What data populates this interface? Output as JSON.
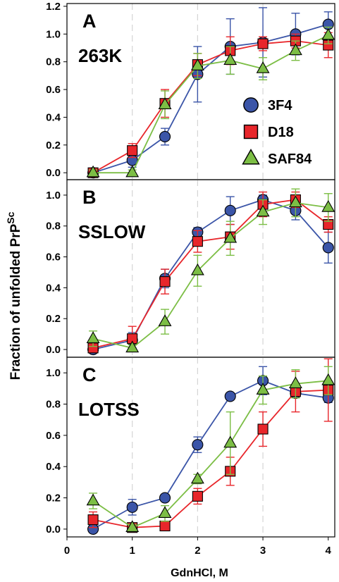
{
  "figure": {
    "ylabel_main": "Fraction of unfolded PrP",
    "ylabel_sup": "Sc",
    "xlabel": "GdnHCl, M",
    "x_ticks": [
      "0",
      "1",
      "2",
      "3",
      "4"
    ],
    "legend": [
      {
        "label": "3F4",
        "marker": "circle",
        "color": "#3B55A8"
      },
      {
        "label": "D18",
        "marker": "square",
        "color": "#E8262B"
      },
      {
        "label": "SAF84",
        "marker": "triangle",
        "color": "#7CBE45"
      }
    ]
  },
  "chart_data": [
    {
      "type": "line",
      "letter": "A",
      "title": "263K",
      "xlabel": "GdnHCl, M",
      "ylabel": "Fraction of unfolded PrP^Sc",
      "xlim": [
        0,
        4.1
      ],
      "ylim": [
        -0.05,
        1.22
      ],
      "y_ticks": [
        "0.0",
        "0.2",
        "0.4",
        "0.6",
        "0.8",
        "1.0",
        "1.2"
      ],
      "x_gridlines": [
        1,
        2,
        3
      ],
      "x": [
        0.4,
        1.0,
        1.5,
        2.0,
        2.5,
        3.0,
        3.5,
        4.0
      ],
      "series": [
        {
          "name": "3F4",
          "color": "#3B55A8",
          "marker": "circle",
          "values": [
            0.0,
            0.09,
            0.26,
            0.71,
            0.91,
            0.94,
            1.0,
            1.07
          ],
          "errors": [
            0.0,
            0.05,
            0.06,
            0.2,
            0.2,
            0.25,
            0.15,
            0.09
          ]
        },
        {
          "name": "D18",
          "color": "#E8262B",
          "marker": "square",
          "values": [
            0.0,
            0.16,
            0.5,
            0.78,
            0.88,
            0.93,
            0.95,
            0.92
          ],
          "errors": [
            0.02,
            0.05,
            0.1,
            0.08,
            0.1,
            0.05,
            0.05,
            0.09
          ]
        },
        {
          "name": "SAF84",
          "color": "#7CBE45",
          "marker": "triangle",
          "values": [
            0.0,
            0.0,
            0.49,
            0.77,
            0.81,
            0.75,
            0.88,
            0.99
          ],
          "errors": [
            0.02,
            0.02,
            0.1,
            0.09,
            0.1,
            0.08,
            0.07,
            0.06
          ]
        }
      ]
    },
    {
      "type": "line",
      "letter": "B",
      "title": "SSLOW",
      "xlabel": "GdnHCl, M",
      "ylabel": "Fraction of unfolded PrP^Sc",
      "xlim": [
        0,
        4.1
      ],
      "ylim": [
        -0.05,
        1.1
      ],
      "y_ticks": [
        "0.0",
        "0.2",
        "0.4",
        "0.6",
        "0.8",
        "1.0"
      ],
      "x_gridlines": [
        1,
        2,
        3
      ],
      "x": [
        0.4,
        1.0,
        1.5,
        2.0,
        2.5,
        3.0,
        3.5,
        4.0
      ],
      "series": [
        {
          "name": "3F4",
          "color": "#3B55A8",
          "marker": "circle",
          "values": [
            0.0,
            0.06,
            0.46,
            0.76,
            0.9,
            0.97,
            0.9,
            0.66
          ],
          "errors": [
            0.01,
            0.05,
            0.06,
            0.03,
            0.09,
            0.03,
            0.06,
            0.1
          ]
        },
        {
          "name": "D18",
          "color": "#E8262B",
          "marker": "square",
          "values": [
            0.01,
            0.07,
            0.44,
            0.7,
            0.73,
            0.94,
            0.97,
            0.81
          ],
          "errors": [
            0.03,
            0.08,
            0.08,
            0.07,
            0.08,
            0.08,
            0.05,
            0.05
          ]
        },
        {
          "name": "SAF84",
          "color": "#7CBE45",
          "marker": "triangle",
          "values": [
            0.07,
            0.01,
            0.18,
            0.51,
            0.72,
            0.89,
            0.95,
            0.92
          ],
          "errors": [
            0.05,
            0.02,
            0.08,
            0.1,
            0.11,
            0.08,
            0.09,
            0.09
          ]
        }
      ]
    },
    {
      "type": "line",
      "letter": "C",
      "title": "LOTSS",
      "xlabel": "GdnHCl, M",
      "ylabel": "Fraction of unfolded PrP^Sc",
      "xlim": [
        0,
        4.1
      ],
      "ylim": [
        -0.05,
        1.1
      ],
      "y_ticks": [
        "0.0",
        "0.2",
        "0.4",
        "0.6",
        "0.8",
        "1.0"
      ],
      "x_gridlines": [
        1,
        2,
        3
      ],
      "x": [
        0.4,
        1.0,
        1.5,
        2.0,
        2.5,
        3.0,
        3.5,
        4.0
      ],
      "series": [
        {
          "name": "3F4",
          "color": "#3B55A8",
          "marker": "circle",
          "values": [
            0.0,
            0.14,
            0.2,
            0.54,
            0.85,
            0.95,
            0.87,
            0.84
          ],
          "errors": [
            0.01,
            0.05,
            0.02,
            0.05,
            0.02,
            0.09,
            0.03,
            0.03
          ]
        },
        {
          "name": "D18",
          "color": "#E8262B",
          "marker": "square",
          "values": [
            0.06,
            0.01,
            0.02,
            0.21,
            0.37,
            0.64,
            0.88,
            0.89
          ],
          "errors": [
            0.05,
            0.02,
            0.02,
            0.05,
            0.09,
            0.11,
            0.13,
            0.2
          ]
        },
        {
          "name": "SAF84",
          "color": "#7CBE45",
          "marker": "triangle",
          "values": [
            0.18,
            0.01,
            0.1,
            0.32,
            0.55,
            0.89,
            0.93,
            0.95
          ],
          "errors": [
            0.05,
            0.02,
            0.05,
            0.03,
            0.2,
            0.09,
            0.09,
            0.09
          ]
        }
      ]
    }
  ]
}
